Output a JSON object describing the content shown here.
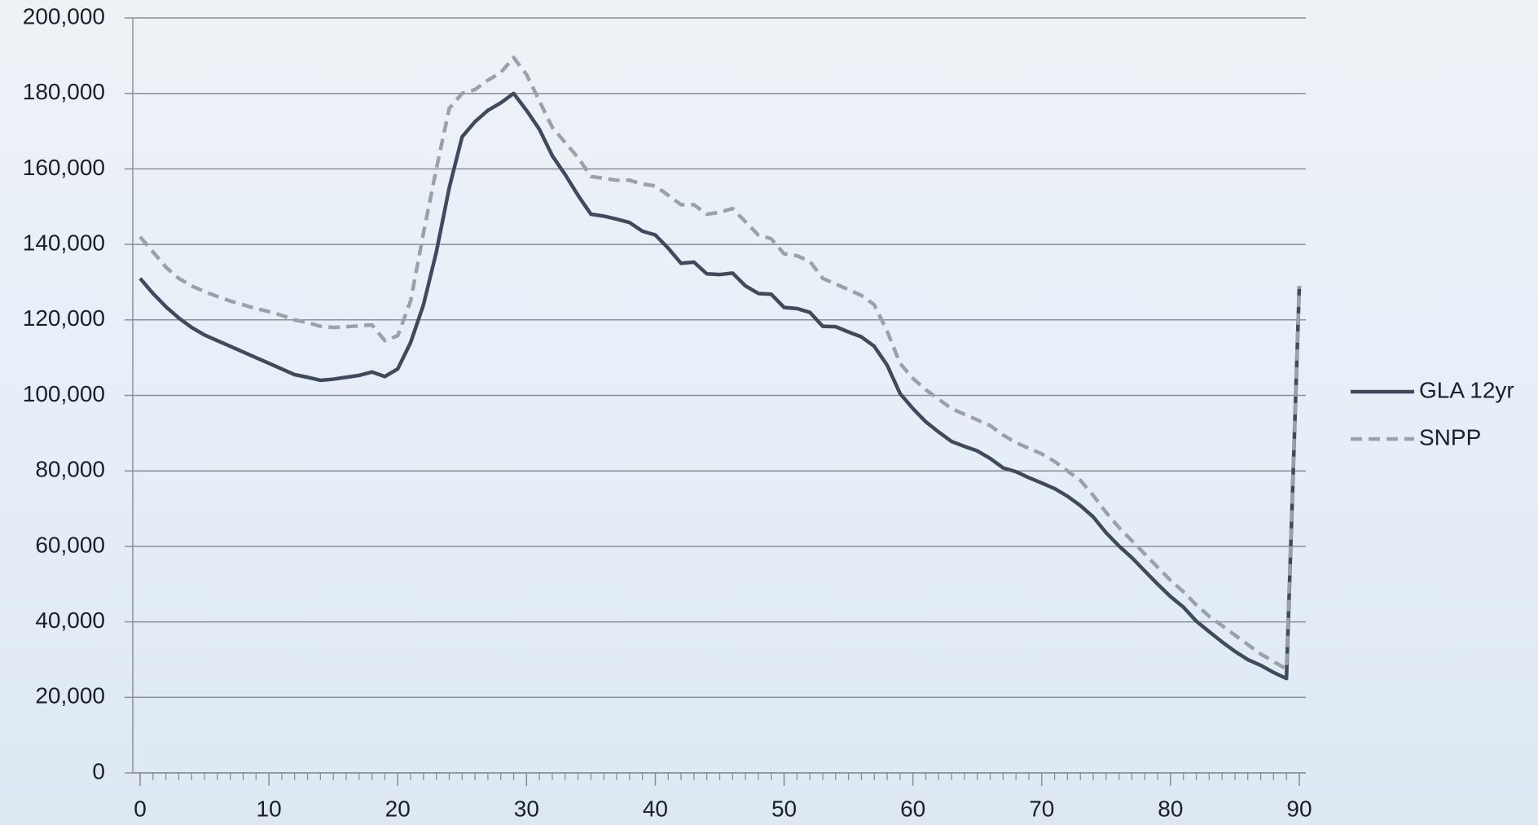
{
  "chart_data": {
    "type": "line",
    "x": [
      0,
      1,
      2,
      3,
      4,
      5,
      6,
      7,
      8,
      9,
      10,
      11,
      12,
      13,
      14,
      15,
      16,
      17,
      18,
      19,
      20,
      21,
      22,
      23,
      24,
      25,
      26,
      27,
      28,
      29,
      30,
      31,
      32,
      33,
      34,
      35,
      36,
      37,
      38,
      39,
      40,
      41,
      42,
      43,
      44,
      45,
      46,
      47,
      48,
      49,
      50,
      51,
      52,
      53,
      54,
      55,
      56,
      57,
      58,
      59,
      60,
      61,
      62,
      63,
      64,
      65,
      66,
      67,
      68,
      69,
      70,
      71,
      72,
      73,
      74,
      75,
      76,
      77,
      78,
      79,
      80,
      81,
      82,
      83,
      84,
      85,
      86,
      87,
      88,
      89,
      90
    ],
    "series": [
      {
        "name": "GLA 12yr",
        "color": "#3f4a5c",
        "dash": false,
        "values": [
          131000,
          127000,
          123500,
          120500,
          118000,
          116000,
          114500,
          113000,
          111500,
          110000,
          108500,
          107000,
          105500,
          104800,
          104000,
          104300,
          104800,
          105300,
          106200,
          105000,
          107000,
          114000,
          124000,
          138000,
          155000,
          168500,
          172500,
          175500,
          177500,
          180000,
          175500,
          170500,
          163500,
          158500,
          153000,
          148000,
          147500,
          146700,
          145800,
          143500,
          142500,
          139000,
          135000,
          135300,
          132200,
          132000,
          132400,
          129000,
          127000,
          126800,
          123300,
          123000,
          122000,
          118300,
          118200,
          116800,
          115500,
          113000,
          108000,
          100500,
          96500,
          93000,
          90300,
          87800,
          86500,
          85300,
          83300,
          80800,
          79800,
          78200,
          76800,
          75300,
          73300,
          70800,
          67800,
          63600,
          60100,
          57000,
          53500,
          50000,
          46700,
          43900,
          40200,
          37400,
          34700,
          32200,
          30000,
          28500,
          26600,
          25000,
          129000
        ]
      },
      {
        "name": "SNPP",
        "color": "#9ca0a8",
        "dash": true,
        "values": [
          142000,
          138000,
          134000,
          131000,
          129000,
          127500,
          126200,
          125000,
          124000,
          123000,
          122200,
          121200,
          120000,
          119300,
          118300,
          118000,
          118200,
          118400,
          118700,
          114500,
          115800,
          125000,
          143000,
          160000,
          176000,
          180000,
          181000,
          183500,
          185500,
          189500,
          185000,
          178000,
          171000,
          167000,
          163000,
          158000,
          157500,
          157000,
          157000,
          156000,
          155500,
          153000,
          150500,
          150500,
          148000,
          148500,
          149500,
          146000,
          142500,
          141500,
          137500,
          137000,
          135500,
          131000,
          129500,
          128000,
          126500,
          124000,
          117000,
          108500,
          104500,
          101500,
          99000,
          96500,
          95000,
          93500,
          92000,
          89500,
          87500,
          86000,
          84500,
          82500,
          80000,
          77500,
          73500,
          69000,
          65000,
          61500,
          58000,
          54500,
          51000,
          48000,
          44500,
          41500,
          39000,
          36500,
          34000,
          31500,
          29500,
          27500,
          129000
        ]
      }
    ],
    "xlim": [
      0,
      90
    ],
    "xticks": [
      0,
      10,
      20,
      30,
      40,
      50,
      60,
      70,
      80,
      90
    ],
    "ylim": [
      0,
      200000
    ],
    "yticks": [
      {
        "value": 0,
        "label": "0"
      },
      {
        "value": 20000,
        "label": "20,000"
      },
      {
        "value": 40000,
        "label": "40,000"
      },
      {
        "value": 60000,
        "label": "60,000"
      },
      {
        "value": 80000,
        "label": "80,000"
      },
      {
        "value": 100000,
        "label": "100,000"
      },
      {
        "value": 120000,
        "label": "120,000"
      },
      {
        "value": 140000,
        "label": "140,000"
      },
      {
        "value": 160000,
        "label": "160,000"
      },
      {
        "value": 180000,
        "label": "180,000"
      },
      {
        "value": 200000,
        "label": "200,000"
      }
    ],
    "grid": true,
    "legend": "right"
  }
}
